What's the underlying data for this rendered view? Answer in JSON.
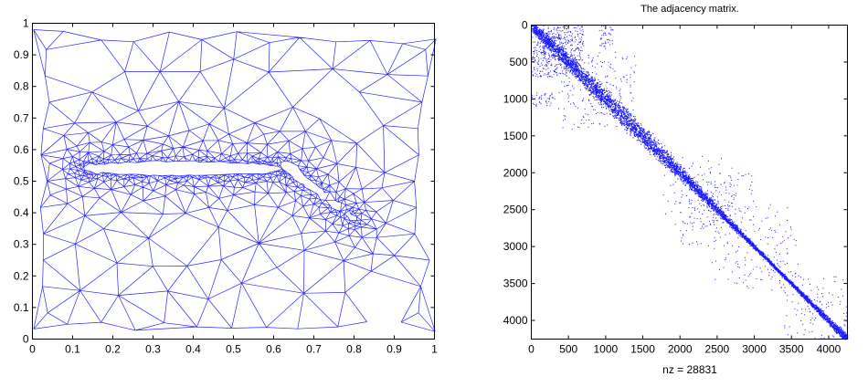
{
  "chart_data": [
    {
      "type": "scatter",
      "subtype": "triangular-mesh",
      "title": "",
      "xlabel": "",
      "ylabel": "",
      "xlim": [
        0,
        1
      ],
      "ylim": [
        0,
        1
      ],
      "xticks": [
        "0",
        "0.1",
        "0.2",
        "0.3",
        "0.4",
        "0.5",
        "0.6",
        "0.7",
        "0.8",
        "0.9",
        "1"
      ],
      "yticks": [
        "0",
        "0.1",
        "0.2",
        "0.3",
        "0.4",
        "0.5",
        "0.6",
        "0.7",
        "0.8",
        "0.9",
        "1"
      ],
      "grid": false,
      "legend": null,
      "description": "Unstructured triangular mesh (blue edges) around a two-element airfoil: main wing spanning x≈0.13–0.62 at y≈0.52–0.56 and a flap from x≈0.63,y≈0.55 angled down to x≈0.80,y≈0.38; mesh refined densely near the airfoil surfaces and coarse toward the outer boundary.",
      "airfoil": {
        "main": {
          "x_start": 0.13,
          "x_end": 0.62,
          "y_center": 0.54,
          "thickness": 0.04
        },
        "flap": {
          "x_start": 0.63,
          "y_start": 0.55,
          "x_end": 0.8,
          "y_end": 0.38
        }
      },
      "line_color": "#0000ff"
    },
    {
      "type": "heatmap",
      "subtype": "sparsity-pattern",
      "title": "The adjacency matrix.",
      "xlabel": "nz = 28831",
      "ylabel": "",
      "xlim": [
        0,
        4253
      ],
      "ylim": [
        4253,
        0
      ],
      "xticks": [
        "0",
        "500",
        "1000",
        "1500",
        "2000",
        "2500",
        "3000",
        "3500",
        "4000"
      ],
      "yticks": [
        "0",
        "500",
        "1000",
        "1500",
        "2000",
        "2500",
        "3000",
        "3500",
        "4000"
      ],
      "nz": 28831,
      "grid": false,
      "legend": null,
      "description": "Banded sparse matrix: dense diagonal band of nonzeros from (0,0) to (~4250,~4250) with scattered off-diagonal entries, most notably near rows/cols 0–1200 and 2000–3500.",
      "marker_color": "#0000ff"
    }
  ]
}
